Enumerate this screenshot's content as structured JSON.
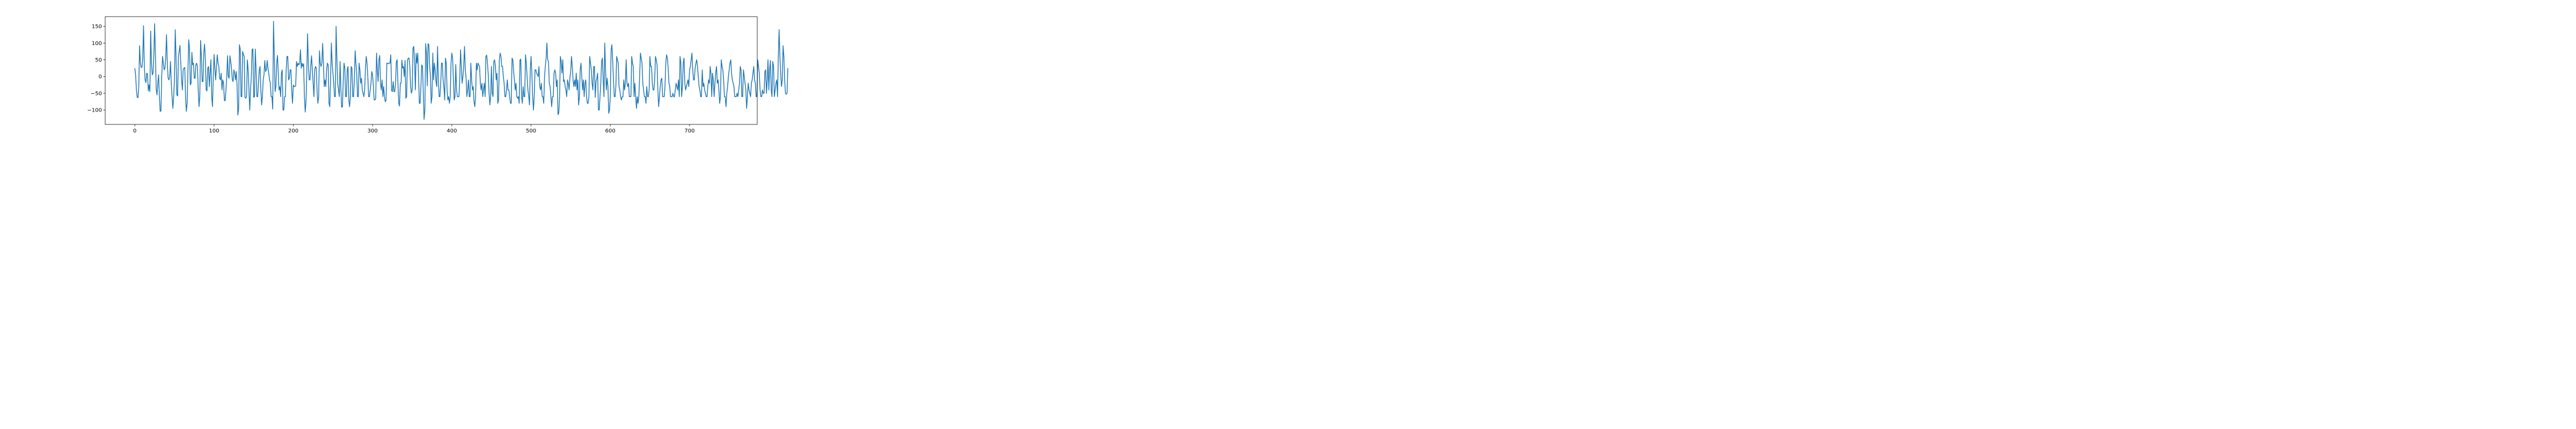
{
  "chart_data": {
    "type": "line",
    "title": "",
    "xlabel": "",
    "ylabel": "",
    "xlim": [
      -37.4,
      785.4
    ],
    "ylim": [
      -143,
      179
    ],
    "xticks": [
      0,
      100,
      200,
      300,
      400,
      500,
      600,
      700
    ],
    "yticks": [
      -100,
      -50,
      0,
      50,
      100,
      150
    ],
    "grid": false,
    "legend": "none",
    "series": [
      {
        "color": "#1f77b4",
        "x_start": 0,
        "x_step": 1,
        "y": [
          24,
          5,
          -40,
          -62,
          -63,
          -30,
          92,
          40,
          27,
          28,
          55,
          152,
          30,
          -10,
          -18,
          10,
          8,
          -43,
          -25,
          -45,
          136,
          40,
          5,
          10,
          65,
          158,
          60,
          -38,
          -55,
          -20,
          5,
          -60,
          -104,
          -103,
          5,
          60,
          40,
          20,
          25,
          55,
          125,
          40,
          -5,
          -10,
          0,
          45,
          -20,
          -60,
          -95,
          -60,
          -10,
          140,
          60,
          -55,
          -58,
          60,
          75,
          93,
          40,
          -10,
          -40,
          20,
          25,
          27,
          -60,
          -104,
          -80,
          15,
          110,
          85,
          -25,
          -20,
          72,
          35,
          40,
          -5,
          -5,
          35,
          40,
          30,
          -40,
          -90,
          -60,
          108,
          60,
          -15,
          -15,
          70,
          97,
          50,
          -40,
          -43,
          25,
          30,
          -30,
          10,
          50,
          -60,
          -90,
          0,
          66,
          25,
          -10,
          30,
          65,
          40,
          30,
          -5,
          -10,
          10,
          -40,
          -10,
          -20,
          -72,
          -72,
          -40,
          0,
          62,
          0,
          -5,
          62,
          45,
          25,
          -10,
          -15,
          20,
          10,
          -10,
          15,
          -25,
          -115,
          -95,
          95,
          82,
          -60,
          -60,
          75,
          66,
          60,
          -62,
          -65,
          -60,
          50,
          20,
          -40,
          -100,
          -40,
          0,
          80,
          83,
          -62,
          -60,
          82,
          20,
          -60,
          -60,
          -20,
          20,
          30,
          -40,
          -85,
          -60,
          -10,
          5,
          48,
          15,
          20,
          48,
          25,
          10,
          -10,
          -20,
          -60,
          -60,
          -97,
          165,
          60,
          -45,
          -30,
          40,
          63,
          10,
          -40,
          -30,
          -60,
          10,
          20,
          -100,
          -100,
          -60,
          -60,
          20,
          60,
          60,
          -10,
          -5,
          20,
          20,
          -45,
          -80,
          -25,
          -30,
          -30,
          -28,
          45,
          30,
          40,
          35,
          40,
          80,
          25,
          40,
          30,
          38,
          -60,
          -106,
          -75,
          10,
          128,
          40,
          -10,
          -10,
          30,
          62,
          20,
          -20,
          -60,
          20,
          30,
          25,
          -45,
          -80,
          -60,
          77,
          40,
          30,
          40,
          99,
          40,
          -30,
          -10,
          -30,
          20,
          40,
          35,
          -80,
          -90,
          -10,
          100,
          40,
          10,
          -20,
          -60,
          -60,
          150,
          50,
          -20,
          -40,
          -60,
          45,
          -35,
          -92,
          -90,
          -10,
          40,
          25,
          -60,
          -60,
          20,
          30,
          -70,
          -90,
          -60,
          30,
          25,
          -60,
          -60,
          -10,
          77,
          40,
          10,
          -60,
          -60,
          40,
          20,
          -20,
          -5,
          -40,
          -50,
          -60,
          -40,
          25,
          60,
          40,
          0,
          -60,
          -60,
          -40,
          -20,
          15,
          5,
          -30,
          -70,
          -70,
          -65,
          70,
          20,
          -15,
          50,
          63,
          -20,
          -40,
          -10,
          -60,
          -30,
          -60,
          -75,
          -72,
          40,
          40,
          38,
          40,
          40,
          65,
          -42,
          -45,
          -15,
          -45,
          -45,
          -20,
          45,
          50,
          -20,
          -80,
          -88,
          -20,
          -20,
          49,
          25,
          30,
          0,
          48,
          -65,
          -60,
          48,
          55,
          55,
          30,
          -30,
          -50,
          -40,
          85,
          90,
          45,
          -40,
          69,
          40,
          70,
          5,
          -80,
          -80,
          -30,
          35,
          30,
          -48,
          -128,
          -100,
          98,
          70,
          -28,
          98,
          95,
          32,
          0,
          -80,
          -60,
          70,
          -10,
          40,
          20,
          -15,
          -30,
          90,
          -10,
          -60,
          -60,
          -20,
          40,
          40,
          -10,
          -30,
          -70,
          55,
          40,
          -40,
          -70,
          -60,
          -80,
          -60,
          40,
          70,
          55,
          -10,
          -70,
          -60,
          36,
          -40,
          -60,
          -60,
          -60,
          -10,
          80,
          30,
          -20,
          0,
          30,
          90,
          20,
          -5,
          -60,
          -40,
          -10,
          -60,
          -60,
          40,
          -10,
          -40,
          -30,
          -75,
          -90,
          -60,
          40,
          20,
          40,
          35,
          30,
          -20,
          -40,
          -20,
          -60,
          -40,
          -20,
          -60,
          60,
          64,
          40,
          5,
          -50,
          -85,
          -60,
          30,
          -50,
          -60,
          45,
          50,
          30,
          -10,
          10,
          -80,
          -70,
          50,
          70,
          60,
          30,
          30,
          0,
          -20,
          -60,
          -60,
          -40,
          -10,
          -40,
          -40,
          -60,
          -80,
          -80,
          55,
          50,
          15,
          -10,
          -40,
          -20,
          -60,
          -65,
          -60,
          -80,
          50,
          52,
          -60,
          -80,
          -30,
          -60,
          -60,
          65,
          40,
          0,
          -40,
          -58,
          -85,
          20,
          60,
          10,
          -60,
          -100,
          -60,
          20,
          20,
          10,
          5,
          0,
          30,
          -30,
          -40,
          -20,
          -60,
          -60,
          -80,
          0,
          30,
          55,
          100,
          50,
          45,
          -20,
          -30,
          -60,
          -90,
          -60,
          -60,
          10,
          20,
          10,
          -30,
          -10,
          -114,
          -108,
          -60,
          60,
          46,
          10,
          50,
          -15,
          -10,
          -30,
          -40,
          -60,
          -10,
          -20,
          -40,
          -5,
          15,
          60,
          30,
          -10,
          -30,
          -10,
          -30,
          10,
          -40,
          -10,
          -85,
          -60,
          20,
          40,
          0,
          -40,
          -10,
          -60,
          -20,
          -10,
          -60,
          -80,
          -80,
          -60,
          60,
          40,
          20,
          -20,
          -40,
          30,
          30,
          -62,
          -15,
          -5,
          10,
          -100,
          -100,
          -60,
          -20,
          45,
          55,
          -10,
          -60,
          100,
          20,
          -40,
          -5,
          -30,
          -110,
          -100,
          -60,
          80,
          95,
          45,
          -10,
          -60,
          -60,
          -30,
          60,
          50,
          40,
          -30,
          -40,
          -60,
          -70,
          -60,
          -60,
          -10,
          -40,
          -20,
          50,
          -20,
          -30,
          -20,
          -60,
          -60,
          -60,
          60,
          40,
          30,
          -60,
          -20,
          -60,
          -95,
          -60,
          -80,
          -60,
          0,
          70,
          55,
          40,
          -20,
          -40,
          -60,
          -60,
          -80,
          -30,
          -60,
          -60,
          -40,
          60,
          30,
          30,
          -20,
          -40,
          -40,
          -10,
          60,
          50,
          35,
          -40,
          -90,
          -60,
          -30,
          -10,
          -5,
          -60,
          -60,
          -60,
          -30,
          40,
          65,
          55,
          25,
          -20,
          -30,
          -60,
          -60,
          -60,
          -50,
          -60,
          -60,
          -40,
          -20,
          -30,
          -40,
          -10,
          -60,
          60,
          40,
          -60,
          -30,
          40,
          55,
          -20,
          -40,
          -30,
          -20,
          -10,
          -30,
          20,
          30,
          50,
          70,
          20,
          -10,
          -10,
          25,
          40,
          50,
          30,
          0,
          -30,
          -40,
          -60,
          -60,
          20,
          -30,
          -20,
          -40,
          -50,
          -60,
          -60,
          -30,
          -10,
          -20,
          30,
          10,
          -60,
          10,
          -10,
          -60,
          -20,
          10,
          30,
          -20,
          -10,
          -40,
          -80,
          -60,
          50,
          30,
          20,
          -10,
          -60,
          -60,
          -90,
          -50,
          -30,
          0,
          20,
          40,
          50,
          10,
          -10,
          -20,
          -30,
          -60,
          -60,
          -60,
          -50,
          -60,
          -40,
          -20,
          30,
          20,
          -60,
          -60,
          20,
          0,
          -20,
          -40,
          -95,
          -60,
          -20,
          -40,
          -50,
          -60,
          -20,
          -10,
          10,
          30,
          -10,
          -20,
          -60,
          -60,
          50,
          30,
          10,
          -40,
          -60,
          -60,
          -40,
          -50,
          -50,
          15,
          20,
          -50,
          -10,
          50,
          -40,
          20,
          48,
          -40,
          -60,
          45,
          30,
          -60,
          -40,
          -20,
          -10,
          -60,
          60,
          140,
          60,
          10,
          -30,
          -10,
          92,
          60,
          -10,
          -50,
          -53,
          -50,
          24
        ]
      }
    ]
  }
}
